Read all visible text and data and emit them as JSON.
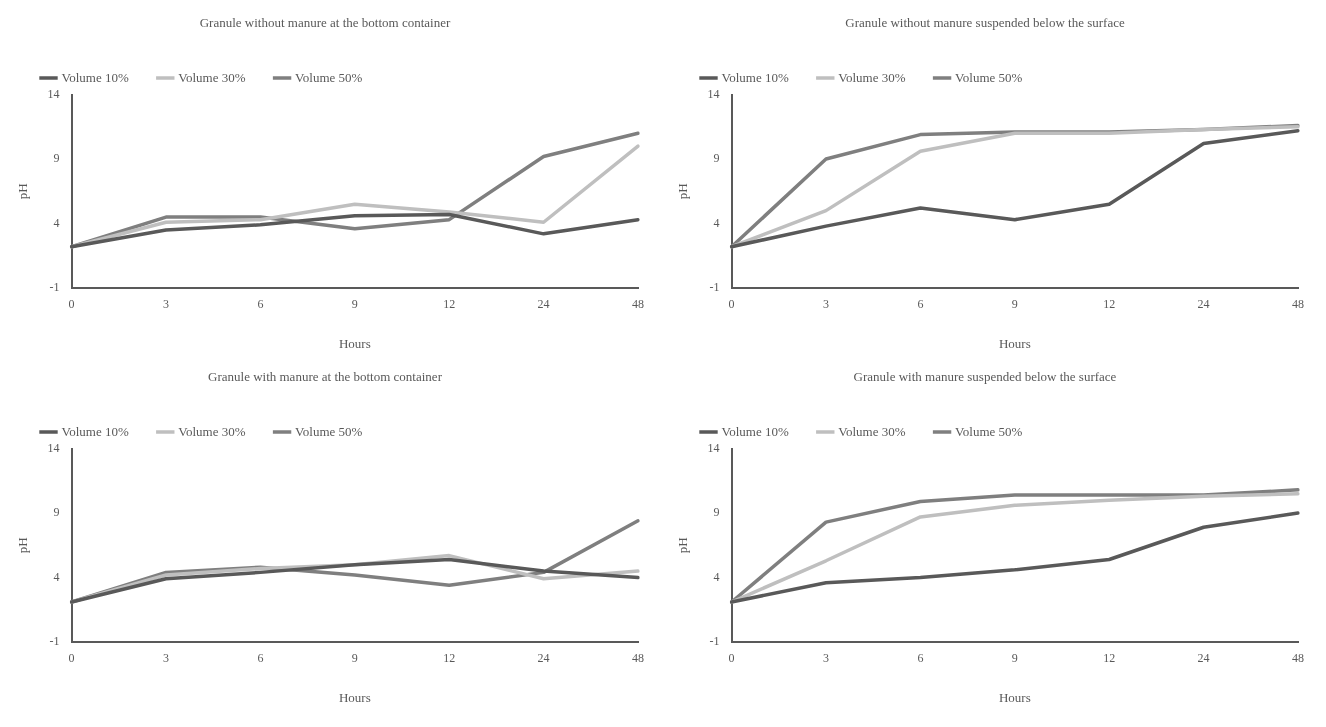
{
  "chart_data": [
    {
      "type": "line",
      "title": "Granule without manure at the bottom container",
      "xlabel": "Hours",
      "ylabel": "pH",
      "categories": [
        "0",
        "3",
        "6",
        "9",
        "12",
        "24",
        "48"
      ],
      "ylim": [
        -1,
        14
      ],
      "yticks": [
        -1,
        4,
        9,
        14
      ],
      "grid": false,
      "legend": "top",
      "marker": "none",
      "line_style": "solid",
      "series": [
        {
          "name": "Volume 10%",
          "color": "#595959",
          "values": [
            2.2,
            3.5,
            3.9,
            4.6,
            4.7,
            3.2,
            4.3
          ]
        },
        {
          "name": "Volume 30%",
          "color": "#bfbfbf",
          "values": [
            2.2,
            4.1,
            4.3,
            5.5,
            4.9,
            4.1,
            10.0
          ]
        },
        {
          "name": "Volume 50%",
          "color": "#7f7f7f",
          "values": [
            2.2,
            4.5,
            4.5,
            3.6,
            4.3,
            9.2,
            11.0
          ]
        }
      ]
    },
    {
      "type": "line",
      "title": "Granule without manure suspended below the surface",
      "xlabel": "Hours",
      "ylabel": "pH",
      "categories": [
        "0",
        "3",
        "6",
        "9",
        "12",
        "24",
        "48"
      ],
      "ylim": [
        -1,
        14
      ],
      "yticks": [
        -1,
        4,
        9,
        14
      ],
      "grid": false,
      "legend": "top",
      "marker": "none",
      "line_style": "solid",
      "series": [
        {
          "name": "Volume 10%",
          "color": "#595959",
          "values": [
            2.2,
            3.8,
            5.2,
            4.3,
            5.5,
            10.2,
            11.2
          ]
        },
        {
          "name": "Volume 30%",
          "color": "#bfbfbf",
          "values": [
            2.2,
            5.0,
            9.6,
            11.0,
            11.0,
            11.3,
            11.5
          ]
        },
        {
          "name": "Volume 50%",
          "color": "#7f7f7f",
          "values": [
            2.2,
            9.0,
            10.9,
            11.1,
            11.1,
            11.3,
            11.6
          ]
        }
      ]
    },
    {
      "type": "line",
      "title": "Granule with manure at the bottom container",
      "xlabel": "Hours",
      "ylabel": "pH",
      "categories": [
        "0",
        "3",
        "6",
        "9",
        "12",
        "24",
        "48"
      ],
      "ylim": [
        -1,
        14
      ],
      "yticks": [
        -1,
        4,
        9,
        14
      ],
      "grid": false,
      "legend": "top",
      "marker": "none",
      "line_style": "solid",
      "series": [
        {
          "name": "Volume 10%",
          "color": "#595959",
          "values": [
            2.1,
            3.9,
            4.4,
            5.0,
            5.4,
            4.5,
            4.0
          ]
        },
        {
          "name": "Volume 30%",
          "color": "#bfbfbf",
          "values": [
            2.1,
            4.2,
            4.7,
            5.0,
            5.7,
            3.9,
            4.5
          ]
        },
        {
          "name": "Volume 50%",
          "color": "#7f7f7f",
          "values": [
            2.1,
            4.4,
            4.8,
            4.2,
            3.4,
            4.4,
            8.4
          ]
        }
      ]
    },
    {
      "type": "line",
      "title": "Granule with manure suspended below the surface",
      "xlabel": "Hours",
      "ylabel": "pH",
      "categories": [
        "0",
        "3",
        "6",
        "9",
        "12",
        "24",
        "48"
      ],
      "ylim": [
        -1,
        14
      ],
      "yticks": [
        -1,
        4,
        9,
        14
      ],
      "grid": false,
      "legend": "top",
      "marker": "none",
      "line_style": "solid",
      "series": [
        {
          "name": "Volume 10%",
          "color": "#595959",
          "values": [
            2.1,
            3.6,
            4.0,
            4.6,
            5.4,
            7.9,
            9.0
          ]
        },
        {
          "name": "Volume 30%",
          "color": "#bfbfbf",
          "values": [
            2.1,
            5.3,
            8.7,
            9.6,
            10.0,
            10.3,
            10.5
          ]
        },
        {
          "name": "Volume 50%",
          "color": "#7f7f7f",
          "values": [
            2.1,
            8.3,
            9.9,
            10.4,
            10.4,
            10.4,
            10.8
          ]
        }
      ]
    }
  ]
}
